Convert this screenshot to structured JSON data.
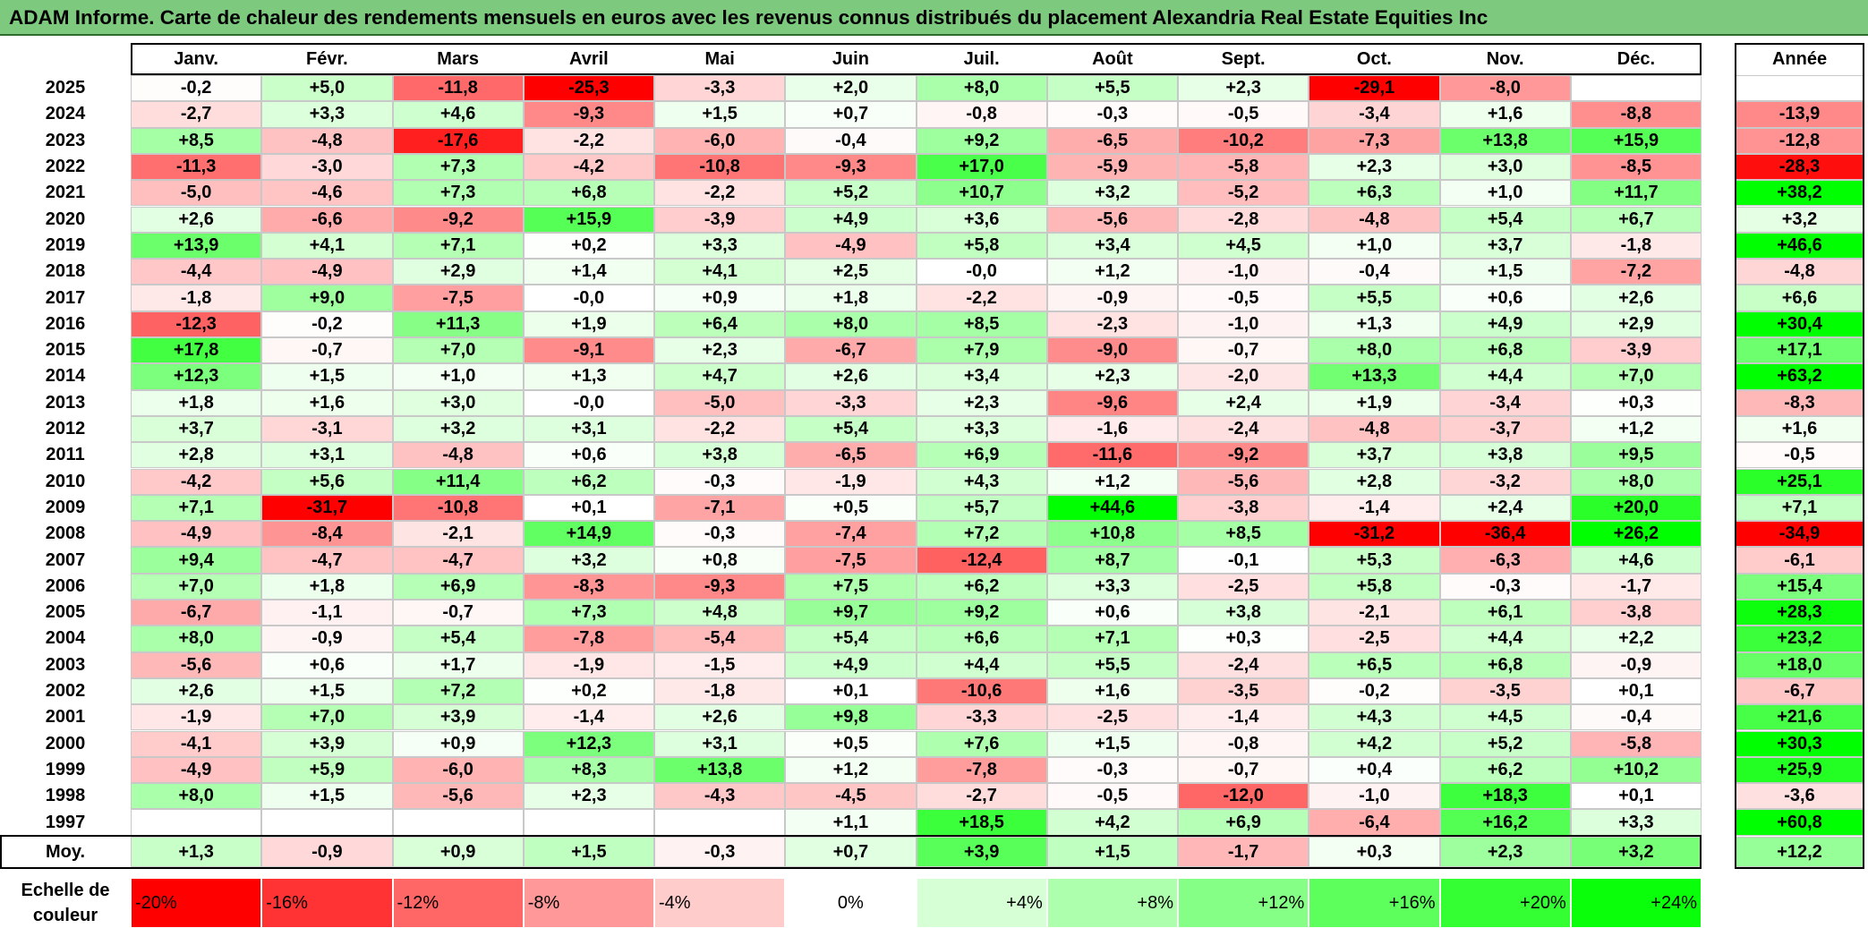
{
  "title": "ADAM Informe. Carte de chaleur des rendements mensuels en euros avec les revenus connus distribués du placement Alexandria Real Estate Equities Inc",
  "chart_data": {
    "type": "heatmap",
    "title": "ADAM Informe. Carte de chaleur des rendements mensuels en euros avec les revenus connus distribués du placement Alexandria Real Estate Equities Inc",
    "columns": [
      "Janv.",
      "Févr.",
      "Mars",
      "Avril",
      "Mai",
      "Juin",
      "Juil.",
      "Août",
      "Sept.",
      "Oct.",
      "Nov.",
      "Déc."
    ],
    "year_column_label": "Année",
    "rows": [
      {
        "year": "2025",
        "months": [
          "-0,2",
          "+5,0",
          "-11,8",
          "-25,3",
          "-3,3",
          "+2,0",
          "+8,0",
          "+5,5",
          "+2,3",
          "-29,1",
          "-8,0",
          ""
        ],
        "annual": ""
      },
      {
        "year": "2024",
        "months": [
          "-2,7",
          "+3,3",
          "+4,6",
          "-9,3",
          "+1,5",
          "+0,7",
          "-0,8",
          "-0,3",
          "-0,5",
          "-3,4",
          "+1,6",
          "-8,8"
        ],
        "annual": "-13,9"
      },
      {
        "year": "2023",
        "months": [
          "+8,5",
          "-4,8",
          "-17,6",
          "-2,2",
          "-6,0",
          "-0,4",
          "+9,2",
          "-6,5",
          "-10,2",
          "-7,3",
          "+13,8",
          "+15,9"
        ],
        "annual": "-12,8"
      },
      {
        "year": "2022",
        "months": [
          "-11,3",
          "-3,0",
          "+7,3",
          "-4,2",
          "-10,8",
          "-9,3",
          "+17,0",
          "-5,9",
          "-5,8",
          "+2,3",
          "+3,0",
          "-8,5"
        ],
        "annual": "-28,3"
      },
      {
        "year": "2021",
        "months": [
          "-5,0",
          "-4,6",
          "+7,3",
          "+6,8",
          "-2,2",
          "+5,2",
          "+10,7",
          "+3,2",
          "-5,2",
          "+6,3",
          "+1,0",
          "+11,7"
        ],
        "annual": "+38,2"
      },
      {
        "year": "2020",
        "months": [
          "+2,6",
          "-6,6",
          "-9,2",
          "+15,9",
          "-3,9",
          "+4,9",
          "+3,6",
          "-5,6",
          "-2,8",
          "-4,8",
          "+5,4",
          "+6,7"
        ],
        "annual": "+3,2"
      },
      {
        "year": "2019",
        "months": [
          "+13,9",
          "+4,1",
          "+7,1",
          "+0,2",
          "+3,3",
          "-4,9",
          "+5,8",
          "+3,4",
          "+4,5",
          "+1,0",
          "+3,7",
          "-1,8"
        ],
        "annual": "+46,6"
      },
      {
        "year": "2018",
        "months": [
          "-4,4",
          "-4,9",
          "+2,9",
          "+1,4",
          "+4,1",
          "+2,5",
          "-0,0",
          "+1,2",
          "-1,0",
          "-0,4",
          "+1,5",
          "-7,2"
        ],
        "annual": "-4,8"
      },
      {
        "year": "2017",
        "months": [
          "-1,8",
          "+9,0",
          "-7,5",
          "-0,0",
          "+0,9",
          "+1,8",
          "-2,2",
          "-0,9",
          "-0,5",
          "+5,5",
          "+0,6",
          "+2,6"
        ],
        "annual": "+6,6"
      },
      {
        "year": "2016",
        "months": [
          "-12,3",
          "-0,2",
          "+11,3",
          "+1,9",
          "+6,4",
          "+8,0",
          "+8,5",
          "-2,3",
          "-1,0",
          "+1,3",
          "+4,9",
          "+2,9"
        ],
        "annual": "+30,4"
      },
      {
        "year": "2015",
        "months": [
          "+17,8",
          "-0,7",
          "+7,0",
          "-9,1",
          "+2,3",
          "-6,7",
          "+7,9",
          "-9,0",
          "-0,7",
          "+8,0",
          "+6,8",
          "-3,9"
        ],
        "annual": "+17,1"
      },
      {
        "year": "2014",
        "months": [
          "+12,3",
          "+1,5",
          "+1,0",
          "+1,3",
          "+4,7",
          "+2,6",
          "+3,4",
          "+2,3",
          "-2,0",
          "+13,3",
          "+4,4",
          "+7,0"
        ],
        "annual": "+63,2"
      },
      {
        "year": "2013",
        "months": [
          "+1,8",
          "+1,6",
          "+3,0",
          "-0,0",
          "-5,0",
          "-3,3",
          "+2,3",
          "-9,6",
          "+2,4",
          "+1,9",
          "-3,4",
          "+0,3"
        ],
        "annual": "-8,3"
      },
      {
        "year": "2012",
        "months": [
          "+3,7",
          "-3,1",
          "+3,2",
          "+3,1",
          "-2,2",
          "+5,4",
          "+3,3",
          "-1,6",
          "-2,4",
          "-4,8",
          "-3,7",
          "+1,2"
        ],
        "annual": "+1,6"
      },
      {
        "year": "2011",
        "months": [
          "+2,8",
          "+3,1",
          "-4,8",
          "+0,6",
          "+3,8",
          "-6,5",
          "+6,9",
          "-11,6",
          "-9,2",
          "+3,7",
          "+3,8",
          "+9,5"
        ],
        "annual": "-0,5"
      },
      {
        "year": "2010",
        "months": [
          "-4,2",
          "+5,6",
          "+11,4",
          "+6,2",
          "-0,3",
          "-1,9",
          "+4,3",
          "+1,2",
          "-5,6",
          "+2,8",
          "-3,2",
          "+8,0"
        ],
        "annual": "+25,1"
      },
      {
        "year": "2009",
        "months": [
          "+7,1",
          "-31,7",
          "-10,8",
          "+0,1",
          "-7,1",
          "+0,5",
          "+5,7",
          "+44,6",
          "-3,8",
          "-1,4",
          "+2,4",
          "+20,0"
        ],
        "annual": "+7,1"
      },
      {
        "year": "2008",
        "months": [
          "-4,9",
          "-8,4",
          "-2,1",
          "+14,9",
          "-0,3",
          "-7,4",
          "+7,2",
          "+10,8",
          "+8,5",
          "-31,2",
          "-36,4",
          "+26,2"
        ],
        "annual": "-34,9"
      },
      {
        "year": "2007",
        "months": [
          "+9,4",
          "-4,7",
          "-4,7",
          "+3,2",
          "+0,8",
          "-7,5",
          "-12,4",
          "+8,7",
          "-0,1",
          "+5,3",
          "-6,3",
          "+4,6"
        ],
        "annual": "-6,1"
      },
      {
        "year": "2006",
        "months": [
          "+7,0",
          "+1,8",
          "+6,9",
          "-8,3",
          "-9,3",
          "+7,5",
          "+6,2",
          "+3,3",
          "-2,5",
          "+5,8",
          "-0,3",
          "-1,7"
        ],
        "annual": "+15,4"
      },
      {
        "year": "2005",
        "months": [
          "-6,7",
          "-1,1",
          "-0,7",
          "+7,3",
          "+4,8",
          "+9,7",
          "+9,2",
          "+0,6",
          "+3,8",
          "-2,1",
          "+6,1",
          "-3,8"
        ],
        "annual": "+28,3"
      },
      {
        "year": "2004",
        "months": [
          "+8,0",
          "-0,9",
          "+5,4",
          "-7,8",
          "-5,4",
          "+5,4",
          "+6,6",
          "+7,1",
          "+0,3",
          "-2,5",
          "+4,4",
          "+2,2"
        ],
        "annual": "+23,2"
      },
      {
        "year": "2003",
        "months": [
          "-5,6",
          "+0,6",
          "+1,7",
          "-1,9",
          "-1,5",
          "+4,9",
          "+4,4",
          "+5,5",
          "-2,4",
          "+6,5",
          "+6,8",
          "-0,9"
        ],
        "annual": "+18,0"
      },
      {
        "year": "2002",
        "months": [
          "+2,6",
          "+1,5",
          "+7,2",
          "+0,2",
          "-1,8",
          "+0,1",
          "-10,6",
          "+1,6",
          "-3,5",
          "-0,2",
          "-3,5",
          "+0,1"
        ],
        "annual": "-6,7"
      },
      {
        "year": "2001",
        "months": [
          "-1,9",
          "+7,0",
          "+3,9",
          "-1,4",
          "+2,6",
          "+9,8",
          "-3,3",
          "-2,5",
          "-1,4",
          "+4,3",
          "+4,5",
          "-0,4"
        ],
        "annual": "+21,6"
      },
      {
        "year": "2000",
        "months": [
          "-4,1",
          "+3,9",
          "+0,9",
          "+12,3",
          "+3,1",
          "+0,5",
          "+7,6",
          "+1,5",
          "-0,8",
          "+4,2",
          "+5,2",
          "-5,8"
        ],
        "annual": "+30,3"
      },
      {
        "year": "1999",
        "months": [
          "-4,9",
          "+5,9",
          "-6,0",
          "+8,3",
          "+13,8",
          "+1,2",
          "-7,8",
          "-0,3",
          "-0,7",
          "+0,4",
          "+6,2",
          "+10,2"
        ],
        "annual": "+25,9"
      },
      {
        "year": "1998",
        "months": [
          "+8,0",
          "+1,5",
          "-5,6",
          "+2,3",
          "-4,3",
          "-4,5",
          "-2,7",
          "-0,5",
          "-12,0",
          "-1,0",
          "+18,3",
          "+0,1"
        ],
        "annual": "-3,6"
      },
      {
        "year": "1997",
        "months": [
          "",
          "",
          "",
          "",
          "",
          "+1,1",
          "+18,5",
          "+4,2",
          "+6,9",
          "-6,4",
          "+16,2",
          "+3,3"
        ],
        "annual": "+60,8"
      }
    ],
    "average": {
      "label": "Moy.",
      "months": [
        "+1,3",
        "-0,9",
        "+0,9",
        "+1,5",
        "-0,3",
        "+0,7",
        "+3,9",
        "+1,5",
        "-1,7",
        "+0,3",
        "+2,3",
        "+3,2"
      ],
      "annual": "+12,2"
    },
    "scale": {
      "label": "Echelle de couleur",
      "steps": [
        {
          "text": "-20%",
          "value": -20,
          "color": "#ff0000"
        },
        {
          "text": "-16%",
          "value": -16,
          "color": "#ff3333"
        },
        {
          "text": "-12%",
          "value": -12,
          "color": "#ff6666"
        },
        {
          "text": "-8%",
          "value": -8,
          "color": "#ff9999"
        },
        {
          "text": "-4%",
          "value": -4,
          "color": "#ffcccc"
        },
        {
          "text": "0%",
          "value": 0,
          "color": "#ffffff"
        },
        {
          "text": "+4%",
          "value": 4,
          "color": "#d6ffd6"
        },
        {
          "text": "+8%",
          "value": 8,
          "color": "#adffad"
        },
        {
          "text": "+12%",
          "value": 12,
          "color": "#85ff85"
        },
        {
          "text": "+16%",
          "value": 16,
          "color": "#5cff5c"
        },
        {
          "text": "+20%",
          "value": 20,
          "color": "#33ff33"
        },
        {
          "text": "+24%",
          "value": 24,
          "color": "#0aff0a"
        }
      ]
    }
  }
}
